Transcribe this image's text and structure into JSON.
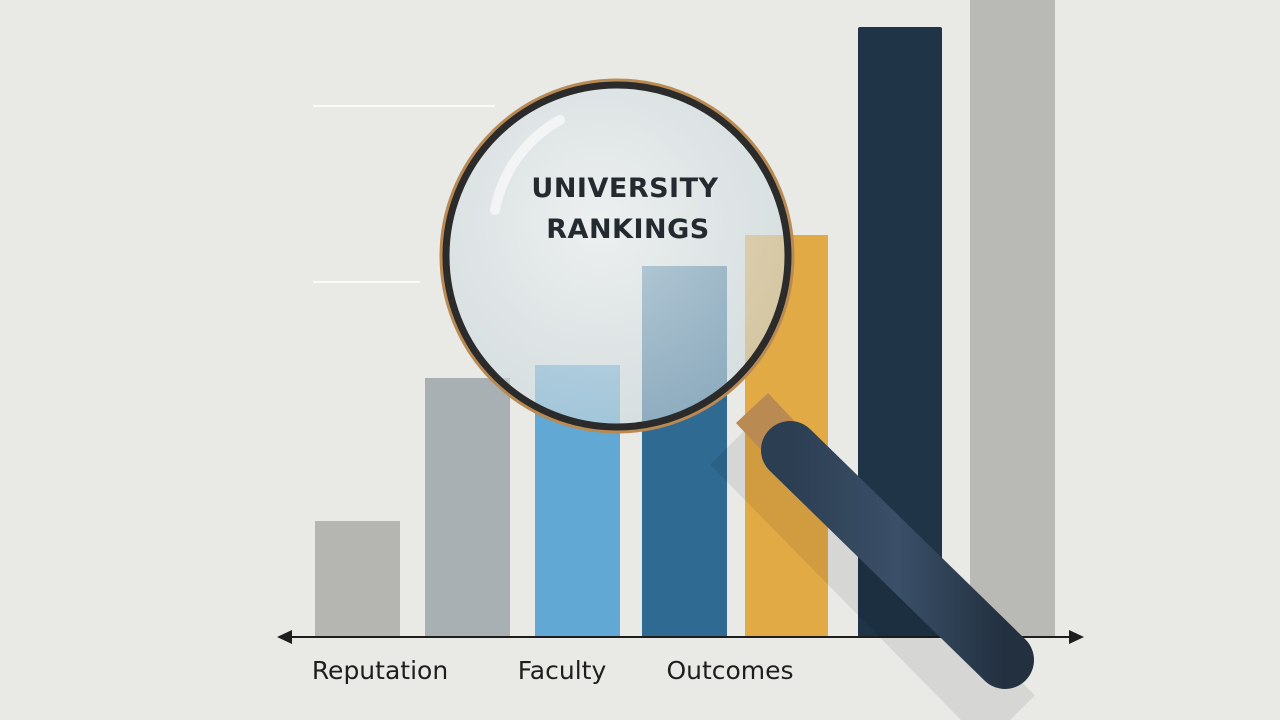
{
  "title": {
    "lines": [
      "UNIVERSITY",
      "RANKINGS"
    ]
  },
  "axis_labels": [
    "Reputation",
    "Faculty",
    "Outcomes"
  ]
}
